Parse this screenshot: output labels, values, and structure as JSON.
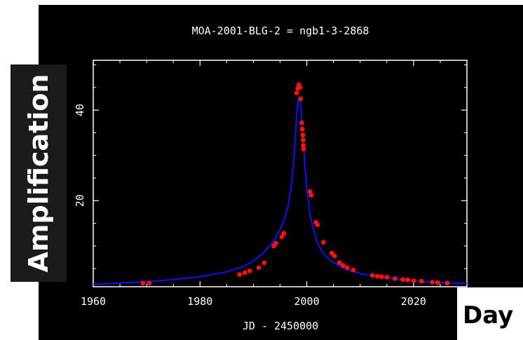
{
  "chart_data": {
    "type": "scatter",
    "title": "MOA-2001-BLG-2 = ngb1-3-2868",
    "xlabel": "JD - 2450000",
    "ylabel": "Amplification",
    "x_annotation": "Day",
    "xlim": [
      1960,
      2030
    ],
    "ylim": [
      1,
      51
    ],
    "x_ticks": [
      1960,
      1980,
      2000,
      2020
    ],
    "y_ticks": [
      20,
      40
    ],
    "grid": false,
    "series": [
      {
        "kind": "model_line",
        "color": "#1010ff",
        "x": [
          1960,
          1970,
          1975,
          1980,
          1985,
          1988,
          1990,
          1992,
          1994,
          1995,
          1996,
          1996.5,
          1997,
          1997.5,
          1998,
          1998.3,
          1998.5,
          1998.8,
          1999.2,
          1999.6,
          2000,
          2000.5,
          2001,
          2002,
          2003,
          2004,
          2006,
          2008,
          2010,
          2013,
          2016,
          2020,
          2025,
          2030
        ],
        "y": [
          1.5,
          2.1,
          2.6,
          3.2,
          4.3,
          5.4,
          6.7,
          8.6,
          11.5,
          13.6,
          16.7,
          19.0,
          22.5,
          28.0,
          37.0,
          42.0,
          42.8,
          41.5,
          36.0,
          28.5,
          22.5,
          17.8,
          14.6,
          10.6,
          8.5,
          7.2,
          5.6,
          4.6,
          3.9,
          3.3,
          2.8,
          2.3,
          1.9,
          1.7
        ]
      },
      {
        "kind": "observations",
        "color": "#ff1010",
        "x": [
          1969.3,
          1970.5,
          1987.4,
          1988.4,
          1989.3,
          1991,
          1992,
          1993.8,
          1994.2,
          1995.3,
          1995.7,
          1998.1,
          1998.3,
          1998.5,
          1998.7,
          1998.85,
          1999.05,
          1999.15,
          1999.25,
          1999.3,
          1999.35,
          1999.4,
          2000.6,
          2000.8,
          2001.7,
          2002.0,
          2003.1,
          2004.7,
          2005.2,
          2006.1,
          2006.8,
          2007.6,
          2008.7,
          2012.3,
          2013.2,
          2014,
          2015,
          2016.5,
          2018,
          2018.9,
          2020,
          2021.5,
          2023.5,
          2024.5,
          2026.3
        ],
        "y": [
          1.8,
          1.8,
          3.7,
          4.1,
          4.5,
          5.2,
          6.3,
          10.0,
          10.6,
          12.0,
          12.8,
          43.8,
          44.8,
          45.6,
          45.0,
          42.5,
          37.2,
          35.8,
          34.5,
          33.4,
          32.2,
          31.4,
          22.0,
          21.2,
          15.2,
          14.7,
          10.8,
          8.4,
          7.8,
          6.3,
          5.7,
          5.2,
          4.7,
          3.5,
          3.3,
          3.2,
          3.1,
          2.8,
          2.6,
          2.5,
          2.3,
          2.2,
          2.0,
          1.9,
          1.8
        ]
      }
    ]
  }
}
